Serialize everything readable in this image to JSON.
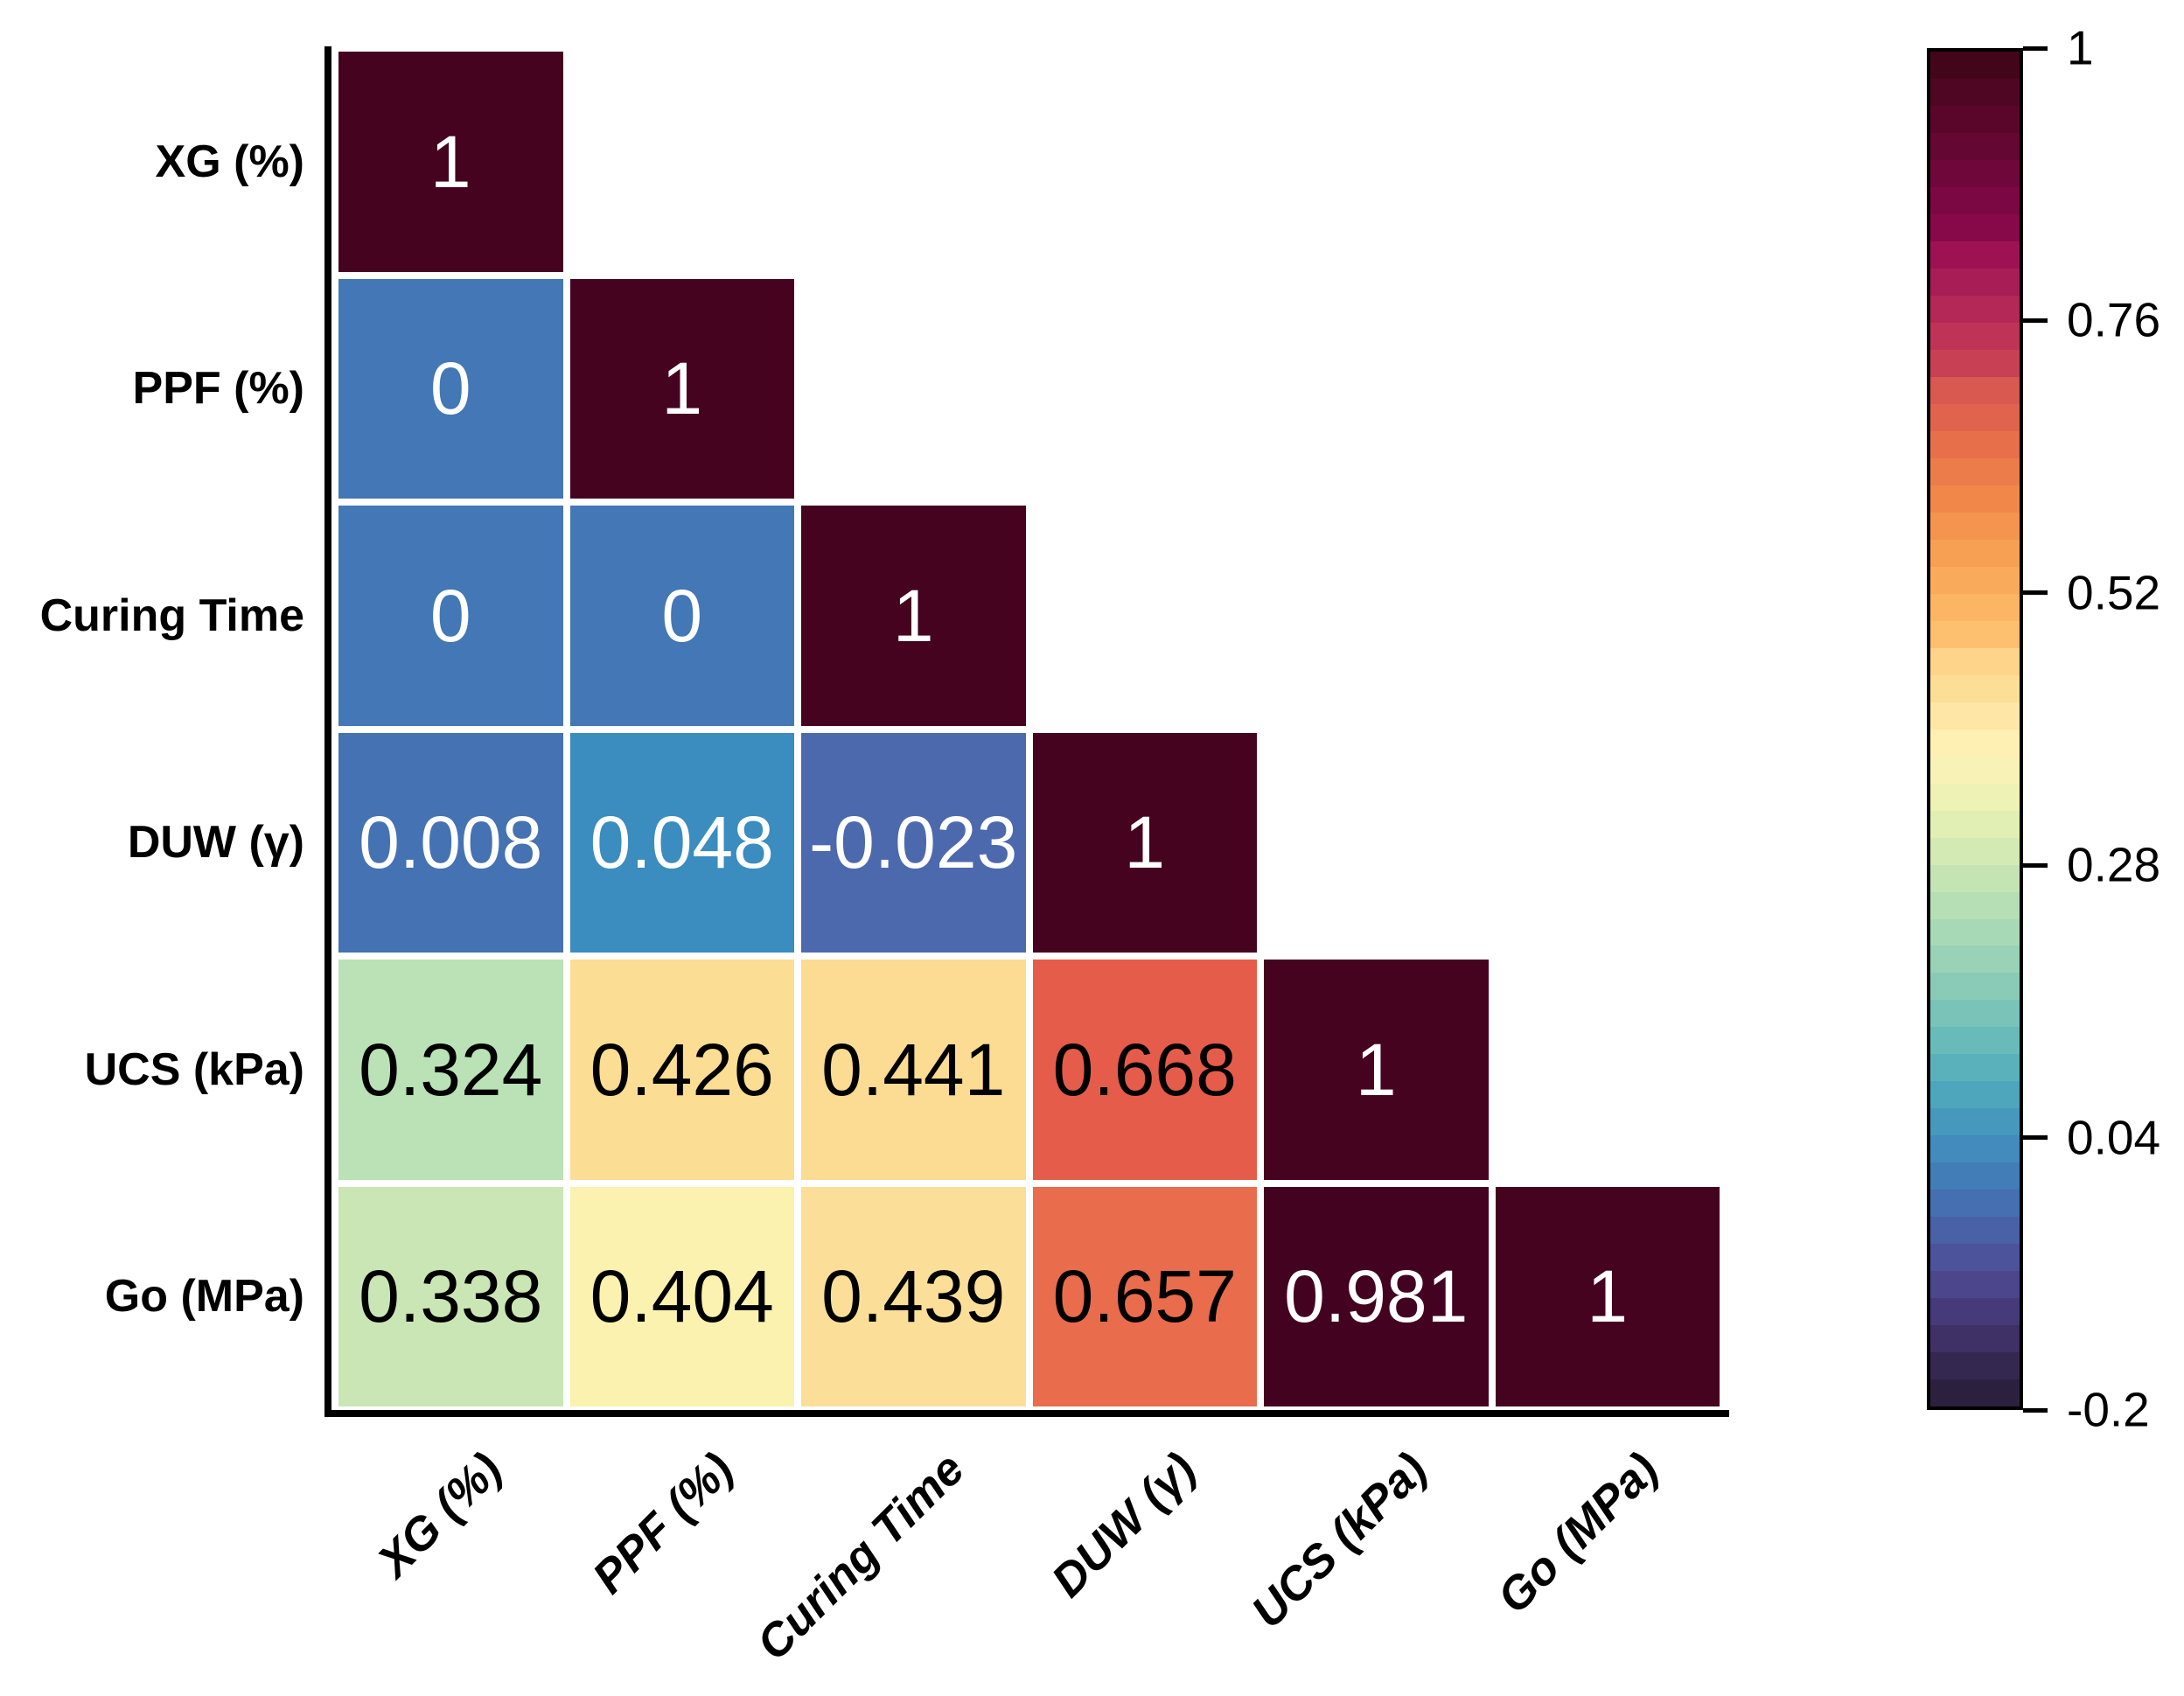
{
  "figure": {
    "background": "#ffffff",
    "axis_color": "#000000",
    "grid_gap_color": "#ffffff"
  },
  "chart_data": {
    "type": "heatmap",
    "subtype": "lower-triangle-correlation-matrix",
    "title": "",
    "variables": [
      "XG (%)",
      "PPF (%)",
      "Curing Time",
      "DUW (γ)",
      "UCS (kPa)",
      "Go (MPa)"
    ],
    "row_labels": [
      "XG (%)",
      "PPF (%)",
      "Curing Time",
      "DUW (γ)",
      "UCS (kPa)",
      "Go (MPa)"
    ],
    "col_labels": [
      "XG (%)",
      "PPF (%)",
      "Curing Time",
      "DUW (γ)",
      "UCS (kPa)",
      "Go (MPa)"
    ],
    "matrix": [
      [
        1,
        null,
        null,
        null,
        null,
        null
      ],
      [
        0,
        1,
        null,
        null,
        null,
        null
      ],
      [
        0,
        0,
        1,
        null,
        null,
        null
      ],
      [
        0.008,
        0.048,
        -0.023,
        1,
        null,
        null
      ],
      [
        0.324,
        0.426,
        0.441,
        0.668,
        1,
        null
      ],
      [
        0.338,
        0.404,
        0.439,
        0.657,
        0.981,
        1
      ]
    ],
    "cells": [
      {
        "r": 0,
        "c": 0,
        "label": "1",
        "bg": "#45031f",
        "fg": "#ffffff"
      },
      {
        "r": 1,
        "c": 0,
        "label": "0",
        "bg": "#4377b5",
        "fg": "#ffffff"
      },
      {
        "r": 1,
        "c": 1,
        "label": "1",
        "bg": "#45031f",
        "fg": "#ffffff"
      },
      {
        "r": 2,
        "c": 0,
        "label": "0",
        "bg": "#4377b5",
        "fg": "#ffffff"
      },
      {
        "r": 2,
        "c": 1,
        "label": "0",
        "bg": "#4377b5",
        "fg": "#ffffff"
      },
      {
        "r": 2,
        "c": 2,
        "label": "1",
        "bg": "#45031f",
        "fg": "#ffffff"
      },
      {
        "r": 3,
        "c": 0,
        "label": "0.008",
        "bg": "#4572b2",
        "fg": "#ffffff"
      },
      {
        "r": 3,
        "c": 1,
        "label": "0.048",
        "bg": "#3b8cbf",
        "fg": "#ffffff"
      },
      {
        "r": 3,
        "c": 2,
        "label": "-0.023",
        "bg": "#4d69ae",
        "fg": "#ffffff"
      },
      {
        "r": 3,
        "c": 3,
        "label": "1",
        "bg": "#45031f",
        "fg": "#ffffff"
      },
      {
        "r": 4,
        "c": 0,
        "label": "0.324",
        "bg": "#bae2b6",
        "fg": "#000000"
      },
      {
        "r": 4,
        "c": 1,
        "label": "0.426",
        "bg": "#fcdd94",
        "fg": "#000000"
      },
      {
        "r": 4,
        "c": 2,
        "label": "0.441",
        "bg": "#fcdb92",
        "fg": "#000000"
      },
      {
        "r": 4,
        "c": 3,
        "label": "0.668",
        "bg": "#e55c4a",
        "fg": "#000000"
      },
      {
        "r": 4,
        "c": 4,
        "label": "1",
        "bg": "#45031f",
        "fg": "#ffffff"
      },
      {
        "r": 5,
        "c": 0,
        "label": "0.338",
        "bg": "#c9e6b4",
        "fg": "#000000"
      },
      {
        "r": 5,
        "c": 1,
        "label": "0.404",
        "bg": "#faf2ae",
        "fg": "#000000"
      },
      {
        "r": 5,
        "c": 2,
        "label": "0.439",
        "bg": "#fbdf99",
        "fg": "#000000"
      },
      {
        "r": 5,
        "c": 3,
        "label": "0.657",
        "bg": "#e96c4c",
        "fg": "#000000"
      },
      {
        "r": 5,
        "c": 4,
        "label": "0.981",
        "bg": "#430320",
        "fg": "#ffffff"
      },
      {
        "r": 5,
        "c": 5,
        "label": "1",
        "bg": "#45031f",
        "fg": "#ffffff"
      }
    ],
    "colorbar": {
      "min": -0.2,
      "max": 1,
      "tick_values": [
        1,
        0.76,
        0.52,
        0.28,
        0.04,
        -0.2
      ],
      "tick_labels": [
        "1",
        "0.76",
        "0.52",
        "0.28",
        "0.04",
        "-0.2"
      ],
      "legend_position": "right",
      "colors_top_to_bottom": [
        "#430519",
        "#4f0622",
        "#5a062b",
        "#650733",
        "#70073b",
        "#7b0842",
        "#870949",
        "#9e1253",
        "#a91d56",
        "#b42857",
        "#bf3456",
        "#c84054",
        "#d9584f",
        "#e0644d",
        "#e7704b",
        "#ec7c49",
        "#f1884a",
        "#f4944e",
        "#f79f53",
        "#f9aa5a",
        "#fbb563",
        "#fcc06f",
        "#fdd489",
        "#fdde97",
        "#fee7a6",
        "#feefb2",
        "#f9f2b6",
        "#eef2b5",
        "#e1eeb4",
        "#d3eab4",
        "#c5e4b4",
        "#b7dfb5",
        "#a8d9b6",
        "#99d2b6",
        "#89cbb7",
        "#79c3b9",
        "#69bbba",
        "#5ab1bb",
        "#4ea6bc",
        "#4699bd",
        "#428bbc",
        "#427db7",
        "#456fb0",
        "#4961a7",
        "#4c539b",
        "#4c468c",
        "#463a7a",
        "#3f3065",
        "#352850",
        "#2b213f"
      ]
    },
    "layout_hints": {
      "grid": "off",
      "row_label_style": "bold",
      "col_label_style": "bold italic, rotated 45°",
      "annotation_text": "black on light cells, white on dark cells"
    }
  }
}
